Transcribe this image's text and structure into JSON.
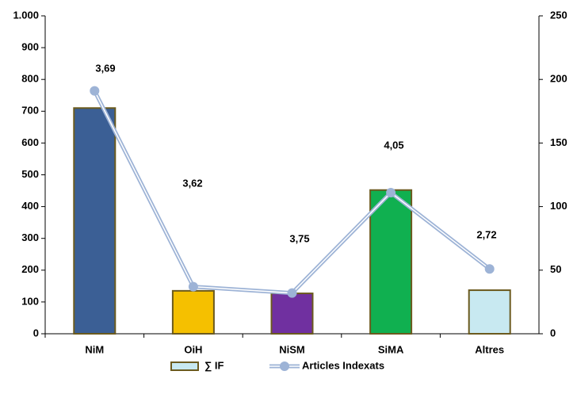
{
  "chart_data": {
    "type": "bar-line",
    "categories": [
      "NiM",
      "OiH",
      "NiSM",
      "SiMA",
      "Altres"
    ],
    "series": [
      {
        "name": "∑ IF",
        "type": "bar",
        "colors": [
          "#3b5f95",
          "#f5c000",
          "#7030a0",
          "#10b050",
          "#c8e9f1"
        ],
        "color": "#c8e9f1",
        "values": [
          710,
          135,
          127,
          452,
          137
        ]
      },
      {
        "name": "Articles Indexats",
        "type": "line",
        "axis": "y2",
        "color": "#9db3d6",
        "values": [
          191,
          37,
          32,
          111,
          51
        ]
      }
    ],
    "annotations": [
      "3,69",
      "3,62",
      "3,75",
      "4,05",
      "2,72"
    ],
    "ylim": [
      0,
      1000
    ],
    "yticks": [
      0,
      100,
      200,
      300,
      400,
      500,
      600,
      700,
      800,
      900,
      {
        "value": 1000,
        "label": "1.000"
      }
    ],
    "y2lim": [
      0,
      250
    ],
    "y2ticks": [
      0,
      50,
      100,
      150,
      200,
      250
    ],
    "legend": "bottom"
  }
}
